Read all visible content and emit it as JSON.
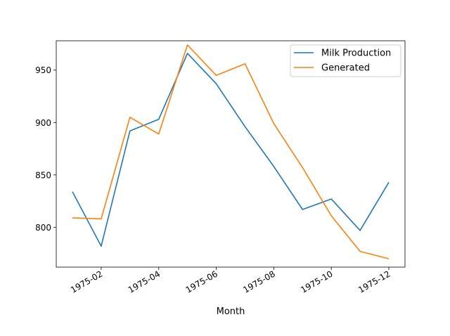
{
  "chart_data": {
    "type": "line",
    "title": "",
    "xlabel": "Month",
    "ylabel": "",
    "x": [
      "1975-01",
      "1975-02",
      "1975-03",
      "1975-04",
      "1975-05",
      "1975-06",
      "1975-07",
      "1975-08",
      "1975-09",
      "1975-10",
      "1975-11",
      "1975-12"
    ],
    "x_tick_labels": [
      "1975-02",
      "1975-04",
      "1975-06",
      "1975-08",
      "1975-10",
      "1975-12"
    ],
    "y_ticks": [
      800,
      850,
      900,
      950
    ],
    "ylim": [
      762,
      978
    ],
    "grid": false,
    "legend_position": "upper right",
    "series": [
      {
        "name": "Milk Production",
        "color": "#1f77b4",
        "values": [
          834,
          782,
          892,
          903,
          966,
          937,
          896,
          858,
          817,
          827,
          797,
          843
        ]
      },
      {
        "name": "Generated",
        "color": "#ff7f0e",
        "values": [
          809,
          808,
          905,
          889,
          974,
          945,
          956,
          899,
          857,
          811,
          777,
          770
        ]
      }
    ]
  }
}
